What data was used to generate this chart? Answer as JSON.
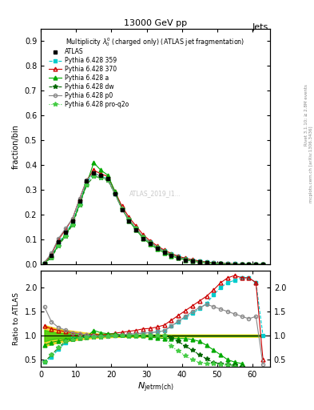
{
  "title_top": "13000 GeV pp",
  "title_right": "Jets",
  "plot_title": "Multiplicity $\\lambda_0^0$ (charged only) (ATLAS jet fragmentation)",
  "xlabel": "$N_{\\mathrm{jetrm(ch)}}$",
  "ylabel_top": "fraction/bin",
  "ylabel_bottom": "Ratio to ATLAS",
  "watermark": "ATLAS_2019_I1...",
  "x_main": [
    1,
    3,
    5,
    7,
    9,
    11,
    13,
    15,
    17,
    19,
    21,
    23,
    25,
    27,
    29,
    31,
    33,
    35,
    37,
    39,
    41,
    43,
    45,
    47,
    49,
    51,
    53,
    55,
    57,
    59,
    61,
    63
  ],
  "atlas_y": [
    0.005,
    0.035,
    0.09,
    0.13,
    0.175,
    0.255,
    0.335,
    0.37,
    0.36,
    0.345,
    0.285,
    0.22,
    0.175,
    0.14,
    0.105,
    0.085,
    0.065,
    0.05,
    0.035,
    0.025,
    0.018,
    0.013,
    0.009,
    0.006,
    0.004,
    0.003,
    0.002,
    0.001,
    0.001,
    0.0005,
    0.0,
    0.0
  ],
  "py359_y": [
    0.005,
    0.033,
    0.085,
    0.125,
    0.17,
    0.25,
    0.33,
    0.365,
    0.355,
    0.345,
    0.285,
    0.225,
    0.18,
    0.145,
    0.11,
    0.09,
    0.07,
    0.055,
    0.042,
    0.032,
    0.024,
    0.018,
    0.013,
    0.01,
    0.007,
    0.005,
    0.004,
    0.003,
    0.002,
    0.001,
    0.0005,
    0.0
  ],
  "py370_y": [
    0.006,
    0.04,
    0.1,
    0.14,
    0.185,
    0.265,
    0.34,
    0.38,
    0.365,
    0.355,
    0.295,
    0.235,
    0.19,
    0.155,
    0.12,
    0.095,
    0.075,
    0.058,
    0.044,
    0.033,
    0.025,
    0.019,
    0.014,
    0.01,
    0.007,
    0.005,
    0.004,
    0.003,
    0.002,
    0.001,
    0.001,
    0.0
  ],
  "pya_y": [
    0.004,
    0.03,
    0.08,
    0.12,
    0.165,
    0.245,
    0.325,
    0.41,
    0.38,
    0.36,
    0.295,
    0.225,
    0.175,
    0.14,
    0.105,
    0.082,
    0.062,
    0.047,
    0.034,
    0.025,
    0.018,
    0.013,
    0.009,
    0.006,
    0.004,
    0.003,
    0.002,
    0.001,
    0.0,
    0.0,
    0.0,
    0.0
  ],
  "pydw_y": [
    0.004,
    0.028,
    0.075,
    0.115,
    0.16,
    0.24,
    0.32,
    0.355,
    0.35,
    0.34,
    0.285,
    0.225,
    0.18,
    0.145,
    0.11,
    0.088,
    0.068,
    0.052,
    0.038,
    0.028,
    0.02,
    0.015,
    0.011,
    0.008,
    0.005,
    0.003,
    0.002,
    0.001,
    0.0,
    0.0,
    0.0,
    0.0
  ],
  "pyp0_y": [
    0.008,
    0.045,
    0.105,
    0.145,
    0.185,
    0.265,
    0.34,
    0.37,
    0.355,
    0.34,
    0.285,
    0.225,
    0.18,
    0.145,
    0.11,
    0.088,
    0.068,
    0.052,
    0.038,
    0.028,
    0.02,
    0.015,
    0.011,
    0.008,
    0.006,
    0.004,
    0.003,
    0.002,
    0.001,
    0.001,
    0.0005,
    0.0
  ],
  "pyproq2o_y": [
    0.004,
    0.028,
    0.075,
    0.115,
    0.16,
    0.24,
    0.32,
    0.355,
    0.35,
    0.34,
    0.285,
    0.225,
    0.18,
    0.145,
    0.11,
    0.088,
    0.068,
    0.052,
    0.038,
    0.028,
    0.02,
    0.015,
    0.011,
    0.008,
    0.005,
    0.003,
    0.002,
    0.001,
    0.0,
    0.0,
    0.0,
    0.0
  ],
  "ratio_x": [
    1,
    3,
    5,
    7,
    9,
    11,
    13,
    15,
    17,
    19,
    21,
    23,
    25,
    27,
    29,
    31,
    33,
    35,
    37,
    39,
    41,
    43,
    45,
    47,
    49,
    51,
    53,
    55,
    57,
    59,
    61,
    63
  ],
  "ratio_py359": [
    0.45,
    0.55,
    0.72,
    0.85,
    0.93,
    0.97,
    0.985,
    0.99,
    0.985,
    1.0,
    1.0,
    1.02,
    1.03,
    1.04,
    1.05,
    1.06,
    1.08,
    1.1,
    1.2,
    1.28,
    1.38,
    1.46,
    1.56,
    1.67,
    1.85,
    2.0,
    2.1,
    2.15,
    2.2,
    2.2,
    2.1,
    1.0
  ],
  "ratio_py370": [
    1.2,
    1.14,
    1.11,
    1.08,
    1.06,
    1.04,
    1.015,
    1.03,
    1.015,
    1.03,
    1.05,
    1.07,
    1.09,
    1.11,
    1.14,
    1.15,
    1.18,
    1.22,
    1.32,
    1.42,
    1.52,
    1.62,
    1.72,
    1.82,
    1.95,
    2.1,
    2.2,
    2.25,
    2.2,
    2.2,
    2.1,
    0.5
  ],
  "ratio_pya": [
    0.8,
    0.86,
    0.89,
    0.92,
    0.94,
    0.96,
    0.97,
    1.11,
    1.06,
    1.04,
    1.035,
    1.02,
    1.0,
    1.0,
    1.0,
    0.965,
    0.954,
    0.94,
    0.94,
    0.94,
    0.94,
    0.92,
    0.88,
    0.8,
    0.7,
    0.6,
    0.5,
    0.45,
    0.42,
    0.0,
    0.0,
    0.0
  ],
  "ratio_pydw": [
    0.45,
    0.6,
    0.75,
    0.88,
    0.92,
    0.96,
    0.975,
    0.97,
    0.975,
    0.99,
    1.0,
    1.01,
    1.01,
    1.01,
    1.01,
    1.01,
    1.01,
    1.01,
    0.95,
    0.88,
    0.78,
    0.7,
    0.6,
    0.52,
    0.44,
    0.42,
    0.4,
    0.38,
    0.35,
    0.0,
    0.0,
    0.0
  ],
  "ratio_pyp0": [
    1.6,
    1.29,
    1.17,
    1.115,
    1.06,
    1.04,
    1.015,
    1.0,
    0.986,
    0.985,
    1.0,
    1.02,
    1.03,
    1.04,
    1.055,
    1.06,
    1.08,
    1.1,
    1.2,
    1.3,
    1.4,
    1.5,
    1.58,
    1.65,
    1.6,
    1.55,
    1.5,
    1.45,
    1.4,
    1.35,
    1.4,
    0.4
  ],
  "ratio_pyproq2o": [
    0.45,
    0.6,
    0.75,
    0.88,
    0.92,
    0.96,
    0.975,
    0.97,
    0.975,
    0.99,
    1.0,
    1.01,
    1.01,
    1.01,
    1.01,
    1.01,
    1.01,
    1.01,
    0.78,
    0.68,
    0.58,
    0.5,
    0.44,
    0.42,
    0.42,
    0.4,
    0.38,
    0.35,
    0.33,
    0.0,
    0.0,
    0.0
  ],
  "green_band_lo": [
    0.88,
    0.92,
    0.94,
    0.95,
    0.96,
    0.97,
    0.975,
    0.98,
    0.982,
    0.985,
    0.987,
    0.988,
    0.989,
    0.99,
    0.99,
    0.99,
    0.99,
    0.99,
    0.99,
    0.99,
    0.99,
    0.99,
    0.99,
    0.99,
    0.99,
    0.99,
    0.99,
    0.99,
    0.99,
    0.99,
    0.99,
    0.99
  ],
  "green_band_hi": [
    1.12,
    1.08,
    1.06,
    1.05,
    1.04,
    1.03,
    1.025,
    1.02,
    1.018,
    1.015,
    1.013,
    1.012,
    1.011,
    1.01,
    1.01,
    1.01,
    1.01,
    1.01,
    1.01,
    1.01,
    1.01,
    1.01,
    1.01,
    1.01,
    1.01,
    1.01,
    1.01,
    1.01,
    1.01,
    1.01,
    1.01,
    1.01
  ],
  "yellow_band_lo": [
    0.78,
    0.82,
    0.86,
    0.88,
    0.9,
    0.92,
    0.94,
    0.95,
    0.96,
    0.965,
    0.97,
    0.972,
    0.974,
    0.975,
    0.975,
    0.975,
    0.975,
    0.975,
    0.975,
    0.975,
    0.975,
    0.975,
    0.975,
    0.975,
    0.975,
    0.975,
    0.975,
    0.975,
    0.975,
    0.975,
    0.975,
    0.975
  ],
  "yellow_band_hi": [
    1.22,
    1.18,
    1.14,
    1.12,
    1.1,
    1.08,
    1.06,
    1.05,
    1.04,
    1.035,
    1.03,
    1.028,
    1.026,
    1.025,
    1.025,
    1.025,
    1.025,
    1.025,
    1.025,
    1.025,
    1.025,
    1.025,
    1.025,
    1.025,
    1.025,
    1.025,
    1.025,
    1.025,
    1.025,
    1.025,
    1.025,
    1.025
  ],
  "color_atlas": "#000000",
  "color_py359": "#00cccc",
  "color_py370": "#cc0000",
  "color_pya": "#00aa00",
  "color_pydw": "#006600",
  "color_pyp0": "#888888",
  "color_pyproq2o": "#44cc44",
  "color_green_band": "#00cc00",
  "color_yellow_band": "#eecc00",
  "ylim_main": [
    0,
    0.95
  ],
  "ylim_ratio": [
    0.35,
    2.35
  ],
  "xlim": [
    0,
    65
  ],
  "yticks_main": [
    0.0,
    0.1,
    0.2,
    0.3,
    0.4,
    0.5,
    0.6,
    0.7,
    0.8,
    0.9
  ],
  "yticks_ratio": [
    0.5,
    1.0,
    1.5,
    2.0
  ],
  "xticks": [
    0,
    10,
    20,
    30,
    40,
    50,
    60
  ]
}
